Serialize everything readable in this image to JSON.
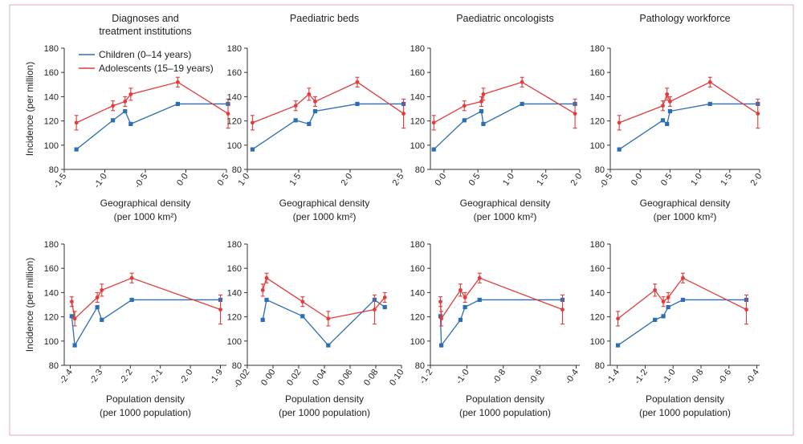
{
  "figure": {
    "border_color": "#e8a7b4",
    "colors": {
      "children": "#2d6db3",
      "adolescents": "#e23b3b",
      "axis": "#333333"
    }
  },
  "chart_data": [
    {
      "type": "line",
      "title": [
        "Diagnoses and",
        "treatment institutions"
      ],
      "xlabel": [
        "Geographical density",
        "(per 1000 km²)"
      ],
      "ylabel": "Incidence (per million)",
      "xlim": [
        -1.5,
        0.5
      ],
      "ylim": [
        80,
        180
      ],
      "xticks": [
        -1.5,
        -1.0,
        -0.5,
        0.0,
        0.5
      ],
      "xtick_labels": [
        "-1·5",
        "-1·0",
        "-0·5",
        "0·0",
        "0·5"
      ],
      "yticks": [
        80,
        100,
        120,
        140,
        160,
        180
      ],
      "legend": {
        "position": "top-left"
      },
      "series": [
        {
          "name": "Children (0–14 years)",
          "points": [
            [
              -1.35,
              96.5
            ],
            [
              -0.9,
              120.5
            ],
            [
              -0.75,
              128
            ],
            [
              -0.68,
              117.5
            ],
            [
              -0.1,
              134
            ],
            [
              0.52,
              134
            ]
          ]
        },
        {
          "name": "Adolescents (15–19 years)",
          "points": [
            [
              -1.35,
              118.5
            ],
            [
              -0.9,
              132.5
            ],
            [
              -0.75,
              136
            ],
            [
              -0.68,
              142
            ],
            [
              -0.1,
              152
            ],
            [
              0.52,
              126
            ]
          ],
          "err": [
            6,
            4,
            4,
            5,
            4,
            12
          ]
        }
      ]
    },
    {
      "type": "line",
      "title": [
        "Paediatric beds"
      ],
      "xlabel": [
        "Geographical density",
        "(per 1000 km²)"
      ],
      "ylabel": "",
      "xlim": [
        1.0,
        2.5
      ],
      "ylim": [
        80,
        180
      ],
      "xticks": [
        1.0,
        1.5,
        2.0,
        2.5
      ],
      "xtick_labels": [
        "1·0",
        "1·5",
        "2·0",
        "2·5"
      ],
      "yticks": [
        80,
        100,
        120,
        140,
        160,
        180
      ],
      "series": [
        {
          "name": "Children (0–14 years)",
          "points": [
            [
              1.05,
              96.5
            ],
            [
              1.47,
              120.5
            ],
            [
              1.6,
              117.5
            ],
            [
              1.66,
              128
            ],
            [
              2.07,
              134
            ],
            [
              2.52,
              134
            ]
          ]
        },
        {
          "name": "Adolescents (15–19 years)",
          "points": [
            [
              1.05,
              118.5
            ],
            [
              1.47,
              132.5
            ],
            [
              1.6,
              142
            ],
            [
              1.66,
              136
            ],
            [
              2.07,
              152
            ],
            [
              2.52,
              126
            ]
          ],
          "err": [
            6,
            4,
            5,
            4,
            4,
            12
          ]
        }
      ]
    },
    {
      "type": "line",
      "title": [
        "Paediatric oncologists"
      ],
      "xlabel": [
        "Geographical density",
        "(per 1000 km²)"
      ],
      "ylabel": "",
      "xlim": [
        -0.2,
        2.0
      ],
      "ylim": [
        80,
        180
      ],
      "xticks": [
        0.0,
        0.5,
        1.0,
        1.5,
        2.0
      ],
      "xtick_labels": [
        "0·0",
        "0·5",
        "1·0",
        "1·5",
        "2·0"
      ],
      "yticks": [
        80,
        100,
        120,
        140,
        160,
        180
      ],
      "series": [
        {
          "name": "Children (0–14 years)",
          "points": [
            [
              -0.15,
              96.5
            ],
            [
              0.3,
              120.5
            ],
            [
              0.55,
              128
            ],
            [
              0.58,
              117.5
            ],
            [
              1.15,
              134
            ],
            [
              1.93,
              134
            ]
          ]
        },
        {
          "name": "Adolescents (15–19 years)",
          "points": [
            [
              -0.15,
              118.5
            ],
            [
              0.3,
              132.5
            ],
            [
              0.55,
              136
            ],
            [
              0.58,
              142
            ],
            [
              1.15,
              152
            ],
            [
              1.93,
              126
            ]
          ],
          "err": [
            6,
            4,
            4,
            5,
            4,
            12
          ]
        }
      ]
    },
    {
      "type": "line",
      "title": [
        "Pathology workforce"
      ],
      "xlabel": [
        "Geographical density",
        "(per 1000 km²)"
      ],
      "ylabel": "",
      "xlim": [
        -0.5,
        2.0
      ],
      "ylim": [
        80,
        180
      ],
      "xticks": [
        -0.5,
        0.0,
        0.5,
        1.0,
        1.5,
        2.0
      ],
      "xtick_labels": [
        "-0·5",
        "0·0",
        "0·5",
        "1·0",
        "1·5",
        "2·0"
      ],
      "yticks": [
        80,
        100,
        120,
        140,
        160,
        180
      ],
      "series": [
        {
          "name": "Children (0–14 years)",
          "points": [
            [
              -0.35,
              96.5
            ],
            [
              0.38,
              120.5
            ],
            [
              0.45,
              117.5
            ],
            [
              0.5,
              128
            ],
            [
              1.17,
              134
            ],
            [
              1.97,
              134
            ]
          ]
        },
        {
          "name": "Adolescents (15–19 years)",
          "points": [
            [
              -0.35,
              118.5
            ],
            [
              0.38,
              132.5
            ],
            [
              0.45,
              142
            ],
            [
              0.5,
              136
            ],
            [
              1.17,
              152
            ],
            [
              1.97,
              126
            ]
          ],
          "err": [
            6,
            4,
            5,
            4,
            4,
            12
          ]
        }
      ]
    },
    {
      "type": "line",
      "title": [],
      "xlabel": [
        "Population density",
        "(per 1000 population)"
      ],
      "ylabel": "Incidence (per million)",
      "xlim": [
        -2.42,
        -1.88
      ],
      "ylim": [
        80,
        180
      ],
      "xticks": [
        -2.4,
        -2.3,
        -2.2,
        -2.1,
        -2.0,
        -1.9
      ],
      "xtick_labels": [
        "-2·4",
        "-2·3",
        "-2·2",
        "-2·1",
        "-2·0",
        "-1·9"
      ],
      "yticks": [
        80,
        100,
        120,
        140,
        160,
        180
      ],
      "series": [
        {
          "name": "Children (0–14 years)",
          "points": [
            [
              -2.395,
              120.5
            ],
            [
              -2.385,
              96.5
            ],
            [
              -2.31,
              128
            ],
            [
              -2.295,
              117.5
            ],
            [
              -2.195,
              134
            ],
            [
              -1.9,
              134
            ]
          ]
        },
        {
          "name": "Adolescents (15–19 years)",
          "points": [
            [
              -2.395,
              132.5
            ],
            [
              -2.385,
              118.5
            ],
            [
              -2.31,
              136
            ],
            [
              -2.295,
              142
            ],
            [
              -2.195,
              152
            ],
            [
              -1.9,
              126
            ]
          ],
          "err": [
            4,
            6,
            4,
            5,
            4,
            12
          ]
        }
      ]
    },
    {
      "type": "line",
      "title": [],
      "xlabel": [
        "Population density",
        "(per 1000 population)"
      ],
      "ylabel": "",
      "xlim": [
        -0.02,
        0.1
      ],
      "ylim": [
        80,
        180
      ],
      "xticks": [
        -0.02,
        0.0,
        0.02,
        0.04,
        0.06,
        0.08,
        0.1
      ],
      "xtick_labels": [
        "-0·02",
        "0·00",
        "0·02",
        "0·04",
        "0·06",
        "0·08",
        "0·10"
      ],
      "yticks": [
        80,
        100,
        120,
        140,
        160,
        180
      ],
      "series": [
        {
          "name": "Children (0–14 years)",
          "points": [
            [
              -0.008,
              117.5
            ],
            [
              -0.005,
              134
            ],
            [
              0.023,
              120.5
            ],
            [
              0.043,
              96.5
            ],
            [
              0.079,
              134
            ],
            [
              0.087,
              128
            ]
          ]
        },
        {
          "name": "Adolescents (15–19 years)",
          "points": [
            [
              -0.008,
              142
            ],
            [
              -0.005,
              152
            ],
            [
              0.023,
              132.5
            ],
            [
              0.043,
              118.5
            ],
            [
              0.079,
              126
            ],
            [
              0.087,
              136
            ]
          ],
          "err": [
            5,
            4,
            4,
            6,
            12,
            4
          ]
        }
      ]
    },
    {
      "type": "line",
      "title": [],
      "xlabel": [
        "Population density",
        "(per 1000 population)"
      ],
      "ylabel": "",
      "xlim": [
        -1.2,
        -0.38
      ],
      "ylim": [
        80,
        180
      ],
      "xticks": [
        -1.2,
        -1.0,
        -0.8,
        -0.6,
        -0.4
      ],
      "xtick_labels": [
        "-1·2",
        "-1·0",
        "-0·8",
        "-0·6",
        "-0·4"
      ],
      "yticks": [
        80,
        100,
        120,
        140,
        160,
        180
      ],
      "series": [
        {
          "name": "Children (0–14 years)",
          "points": [
            [
              -1.145,
              120.5
            ],
            [
              -1.14,
              96.5
            ],
            [
              -1.035,
              117.5
            ],
            [
              -1.01,
              128
            ],
            [
              -0.93,
              134
            ],
            [
              -0.475,
              134
            ]
          ]
        },
        {
          "name": "Adolescents (15–19 years)",
          "points": [
            [
              -1.145,
              132.5
            ],
            [
              -1.14,
              118.5
            ],
            [
              -1.035,
              142
            ],
            [
              -1.01,
              136
            ],
            [
              -0.93,
              152
            ],
            [
              -0.475,
              126
            ]
          ],
          "err": [
            4,
            6,
            5,
            4,
            4,
            12
          ]
        }
      ]
    },
    {
      "type": "line",
      "title": [],
      "xlabel": [
        "Population density",
        "(per 1000 population)"
      ],
      "ylabel": "",
      "xlim": [
        -1.45,
        -0.38
      ],
      "ylim": [
        80,
        180
      ],
      "xticks": [
        -1.4,
        -1.2,
        -1.0,
        -0.8,
        -0.6,
        -0.4
      ],
      "xtick_labels": [
        "-1·4",
        "-1·2",
        "-1·0",
        "-0·8",
        "-0·6",
        "-0·4"
      ],
      "yticks": [
        80,
        100,
        120,
        140,
        160,
        180
      ],
      "series": [
        {
          "name": "Children (0–14 years)",
          "points": [
            [
              -1.395,
              96.5
            ],
            [
              -1.13,
              117.5
            ],
            [
              -1.07,
              120.5
            ],
            [
              -1.035,
              128
            ],
            [
              -0.93,
              134
            ],
            [
              -0.475,
              134
            ]
          ]
        },
        {
          "name": "Adolescents (15–19 years)",
          "points": [
            [
              -1.395,
              118.5
            ],
            [
              -1.13,
              142
            ],
            [
              -1.07,
              132.5
            ],
            [
              -1.035,
              136
            ],
            [
              -0.93,
              152
            ],
            [
              -0.475,
              126
            ]
          ],
          "err": [
            6,
            5,
            4,
            4,
            4,
            12
          ]
        }
      ]
    }
  ]
}
